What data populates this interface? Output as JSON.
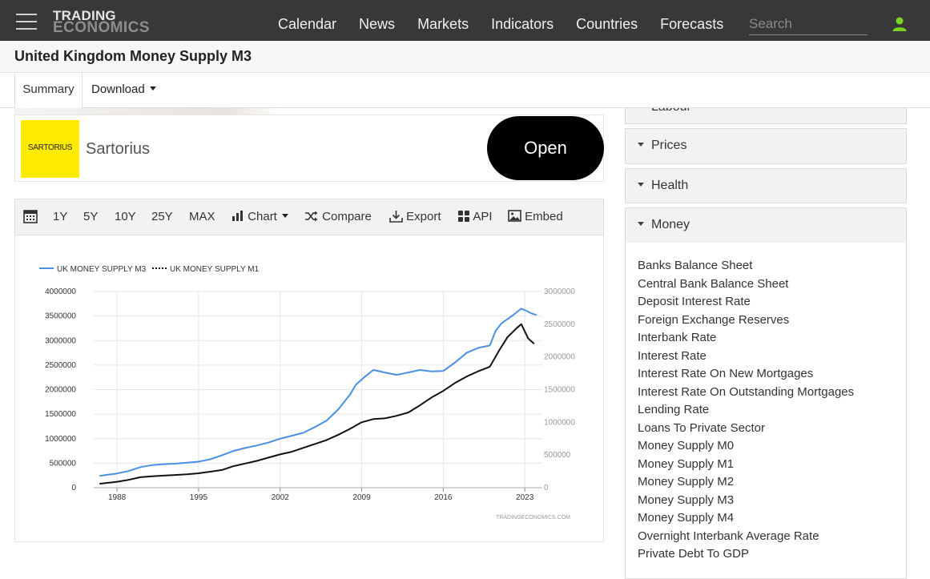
{
  "nav": {
    "logo_line1": "TRADING",
    "logo_line2": "ECONOMICS",
    "links": [
      "Calendar",
      "News",
      "Markets",
      "Indicators",
      "Countries",
      "Forecasts"
    ],
    "search_placeholder": "Search",
    "user_icon": "user-icon",
    "accent": "#7ed321"
  },
  "page": {
    "title": "United Kingdom Money Supply M3"
  },
  "tabs": {
    "summary": "Summary",
    "download": "Download"
  },
  "ad": {
    "logo_text": "SARTORIUS",
    "name": "Sartorius",
    "cta": "Open",
    "logo_color": "#ffeb00"
  },
  "toolbar": {
    "ranges": [
      "1Y",
      "5Y",
      "10Y",
      "25Y",
      "MAX"
    ],
    "chart": "Chart",
    "compare": "Compare",
    "export": "Export",
    "api": "API",
    "embed": "Embed"
  },
  "chart_data": {
    "type": "line",
    "series": [
      {
        "name": "UK MONEY SUPPLY M3",
        "axis": "left",
        "color": "#4a90e2",
        "points": [
          [
            1986.5,
            240000
          ],
          [
            1988,
            290000
          ],
          [
            1989,
            340000
          ],
          [
            1990,
            420000
          ],
          [
            1991,
            460000
          ],
          [
            1992,
            480000
          ],
          [
            1993,
            490000
          ],
          [
            1994,
            510000
          ],
          [
            1995,
            530000
          ],
          [
            1996,
            580000
          ],
          [
            1997,
            660000
          ],
          [
            1998,
            750000
          ],
          [
            1999,
            810000
          ],
          [
            2000,
            860000
          ],
          [
            2001,
            920000
          ],
          [
            2002,
            1000000
          ],
          [
            2003,
            1060000
          ],
          [
            2004,
            1120000
          ],
          [
            2005,
            1240000
          ],
          [
            2006,
            1370000
          ],
          [
            2007,
            1600000
          ],
          [
            2008,
            1900000
          ],
          [
            2008.5,
            2100000
          ],
          [
            2009.2,
            2250000
          ],
          [
            2010,
            2400000
          ],
          [
            2011,
            2350000
          ],
          [
            2012,
            2300000
          ],
          [
            2013,
            2350000
          ],
          [
            2014,
            2400000
          ],
          [
            2015,
            2370000
          ],
          [
            2016,
            2380000
          ],
          [
            2017,
            2550000
          ],
          [
            2018,
            2750000
          ],
          [
            2019,
            2850000
          ],
          [
            2020,
            2900000
          ],
          [
            2020.5,
            3200000
          ],
          [
            2021,
            3350000
          ],
          [
            2022,
            3520000
          ],
          [
            2022.7,
            3650000
          ],
          [
            2023.2,
            3600000
          ],
          [
            2023.5,
            3560000
          ],
          [
            2024,
            3520000
          ]
        ]
      },
      {
        "name": "UK MONEY SUPPLY M1",
        "axis": "right",
        "color": "#111111",
        "points": [
          [
            1986.5,
            60000
          ],
          [
            1988,
            90000
          ],
          [
            1989,
            120000
          ],
          [
            1990,
            160000
          ],
          [
            1991,
            175000
          ],
          [
            1992,
            185000
          ],
          [
            1993,
            195000
          ],
          [
            1994,
            205000
          ],
          [
            1995,
            220000
          ],
          [
            1996,
            245000
          ],
          [
            1997,
            270000
          ],
          [
            1998,
            330000
          ],
          [
            1999,
            370000
          ],
          [
            2000,
            410000
          ],
          [
            2001,
            460000
          ],
          [
            2002,
            510000
          ],
          [
            2003,
            550000
          ],
          [
            2004,
            610000
          ],
          [
            2005,
            670000
          ],
          [
            2006,
            730000
          ],
          [
            2007,
            810000
          ],
          [
            2008,
            900000
          ],
          [
            2009,
            1000000
          ],
          [
            2010,
            1050000
          ],
          [
            2011,
            1060000
          ],
          [
            2012,
            1100000
          ],
          [
            2013,
            1150000
          ],
          [
            2014,
            1260000
          ],
          [
            2015,
            1380000
          ],
          [
            2016,
            1480000
          ],
          [
            2017,
            1600000
          ],
          [
            2018,
            1700000
          ],
          [
            2019,
            1780000
          ],
          [
            2020,
            1850000
          ],
          [
            2020.8,
            2100000
          ],
          [
            2021.5,
            2300000
          ],
          [
            2022.3,
            2440000
          ],
          [
            2022.7,
            2500000
          ],
          [
            2023.3,
            2280000
          ],
          [
            2023.8,
            2200000
          ]
        ]
      }
    ],
    "x_ticks": [
      "1988",
      "1995",
      "2002",
      "2009",
      "2016",
      "2023"
    ],
    "x_tick_years": [
      1988,
      1995,
      2002,
      2009,
      2016,
      2023
    ],
    "xlim": [
      1986,
      2024.5
    ],
    "y_left_ticks": [
      "0",
      "500000",
      "1000000",
      "1500000",
      "2000000",
      "2500000",
      "3000000",
      "3500000",
      "4000000"
    ],
    "ylim_left": [
      0,
      4000000
    ],
    "y_right_ticks": [
      "0",
      "500000",
      "1000000",
      "1500000",
      "2000000",
      "2500000",
      "3000000"
    ],
    "ylim_right": [
      0,
      3000000
    ],
    "legend_position": "top-left",
    "grid": true,
    "watermark": "TRADINGECONOMICS.COM"
  },
  "sidebar": {
    "labour": "Labour",
    "sections": [
      "Prices",
      "Health",
      "Money"
    ],
    "money_items": [
      "Banks Balance Sheet",
      "Central Bank Balance Sheet",
      "Deposit Interest Rate",
      "Foreign Exchange Reserves",
      "Interbank Rate",
      "Interest Rate",
      "Interest Rate On New Mortgages",
      "Interest Rate On Outstanding Mortgages",
      "Lending Rate",
      "Loans To Private Sector",
      "Money Supply M0",
      "Money Supply M1",
      "Money Supply M2",
      "Money Supply M3",
      "Money Supply M4",
      "Overnight Interbank Average Rate",
      "Private Debt To GDP"
    ]
  }
}
